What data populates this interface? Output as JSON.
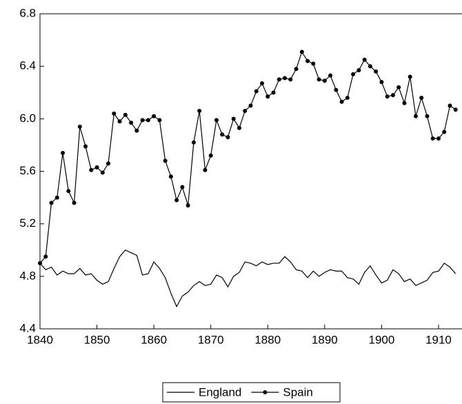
{
  "chart_data": {
    "type": "line",
    "x": [
      1840,
      1841,
      1842,
      1843,
      1844,
      1845,
      1846,
      1847,
      1848,
      1849,
      1850,
      1851,
      1852,
      1853,
      1854,
      1855,
      1856,
      1857,
      1858,
      1859,
      1860,
      1861,
      1862,
      1863,
      1864,
      1865,
      1866,
      1867,
      1868,
      1869,
      1870,
      1871,
      1872,
      1873,
      1874,
      1875,
      1876,
      1877,
      1878,
      1879,
      1880,
      1881,
      1882,
      1883,
      1884,
      1885,
      1886,
      1887,
      1888,
      1889,
      1890,
      1891,
      1892,
      1893,
      1894,
      1895,
      1896,
      1897,
      1898,
      1899,
      1900,
      1901,
      1902,
      1903,
      1904,
      1905,
      1906,
      1907,
      1908,
      1909,
      1910,
      1911,
      1912,
      1913
    ],
    "series": [
      {
        "name": "England",
        "color": "#000000",
        "marker": "none",
        "values": [
          4.9,
          4.85,
          4.87,
          4.81,
          4.84,
          4.82,
          4.82,
          4.86,
          4.81,
          4.82,
          4.77,
          4.74,
          4.76,
          4.86,
          4.95,
          5.0,
          4.98,
          4.96,
          4.81,
          4.82,
          4.91,
          4.86,
          4.79,
          4.67,
          4.57,
          4.65,
          4.68,
          4.73,
          4.76,
          4.73,
          4.74,
          4.81,
          4.79,
          4.72,
          4.8,
          4.83,
          4.91,
          4.9,
          4.88,
          4.91,
          4.89,
          4.9,
          4.9,
          4.95,
          4.91,
          4.85,
          4.84,
          4.79,
          4.84,
          4.8,
          4.83,
          4.85,
          4.84,
          4.84,
          4.79,
          4.78,
          4.74,
          4.83,
          4.88,
          4.81,
          4.75,
          4.77,
          4.85,
          4.82,
          4.76,
          4.78,
          4.73,
          4.75,
          4.77,
          4.83,
          4.84,
          4.9,
          4.87,
          4.82
        ]
      },
      {
        "name": "Spain",
        "color": "#000000",
        "marker": "circle",
        "values": [
          4.9,
          4.95,
          5.36,
          5.4,
          5.74,
          5.45,
          5.36,
          5.94,
          5.79,
          5.61,
          5.63,
          5.59,
          5.66,
          6.04,
          5.98,
          6.03,
          5.97,
          5.91,
          5.99,
          5.99,
          6.02,
          5.99,
          5.68,
          5.56,
          5.38,
          5.48,
          5.34,
          5.82,
          6.06,
          5.61,
          5.72,
          5.99,
          5.88,
          5.86,
          6.0,
          5.93,
          6.06,
          6.1,
          6.21,
          6.27,
          6.17,
          6.2,
          6.3,
          6.31,
          6.3,
          6.38,
          6.51,
          6.44,
          6.42,
          6.3,
          6.29,
          6.33,
          6.22,
          6.13,
          6.16,
          6.34,
          6.37,
          6.45,
          6.4,
          6.36,
          6.28,
          6.17,
          6.18,
          6.24,
          6.12,
          6.32,
          6.02,
          6.16,
          6.02,
          5.85,
          5.85,
          5.9,
          6.1,
          6.07
        ]
      }
    ],
    "xlim": [
      1840,
      1914
    ],
    "xticks": [
      1840,
      1850,
      1860,
      1870,
      1880,
      1890,
      1900,
      1910
    ],
    "ylim": [
      4.4,
      6.8
    ],
    "yticks": [
      {
        "value": 4.4,
        "label": "4.4"
      },
      {
        "value": 4.8,
        "label": "4.8"
      },
      {
        "value": 5.2,
        "label": "5.2"
      },
      {
        "value": 5.6,
        "label": "5.6"
      },
      {
        "value": 6.0,
        "label": "6.0"
      },
      {
        "value": 6.4,
        "label": "6.4"
      },
      {
        "value": 6.8,
        "label": "6.8"
      }
    ],
    "grid": false,
    "legend": "bottom"
  }
}
